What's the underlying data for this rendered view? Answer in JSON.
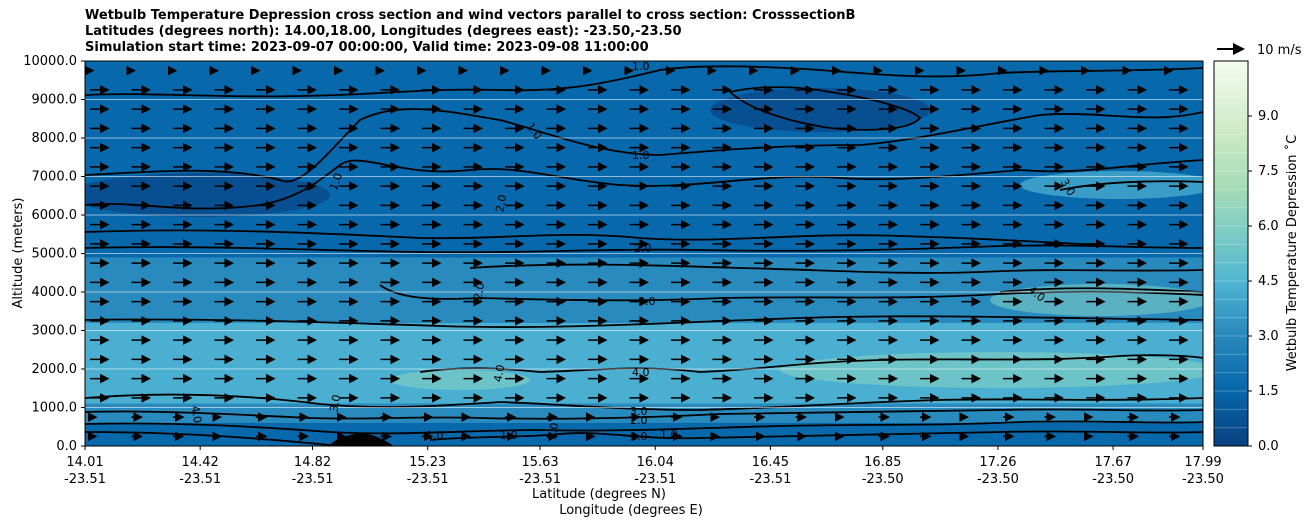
{
  "chart_data": {
    "type": "heatmap",
    "title_lines": [
      "Wetbulb Temperature Depression cross section and wind vectors parallel to cross section: CrosssectionB",
      "Latitudes (degrees north): 14.00,18.00, Longitudes (degrees east): -23.50,-23.50",
      "Simulation start time: 2023-09-07 00:00:00, Valid time: 2023-09-08 11:00:00"
    ],
    "xlabel_lat": "Latitude (degrees N)",
    "xlabel_lon": "Longitude (degrees E)",
    "ylabel": "Altitude (meters)",
    "ylim": [
      0,
      10000
    ],
    "y_ticks": [
      "0.0",
      "1000.0",
      "2000.0",
      "3000.0",
      "4000.0",
      "5000.0",
      "6000.0",
      "7000.0",
      "8000.0",
      "9000.0",
      "10000.0"
    ],
    "x_ticks": [
      {
        "lat": "14.01",
        "lon": "-23.51"
      },
      {
        "lat": "14.42",
        "lon": "-23.51"
      },
      {
        "lat": "14.82",
        "lon": "-23.51"
      },
      {
        "lat": "15.23",
        "lon": "-23.51"
      },
      {
        "lat": "15.63",
        "lon": "-23.51"
      },
      {
        "lat": "16.04",
        "lon": "-23.51"
      },
      {
        "lat": "16.45",
        "lon": "-23.51"
      },
      {
        "lat": "16.85",
        "lon": "-23.50"
      },
      {
        "lat": "17.26",
        "lon": "-23.50"
      },
      {
        "lat": "17.67",
        "lon": "-23.50"
      },
      {
        "lat": "17.99",
        "lon": "-23.50"
      }
    ],
    "colorbar": {
      "label": "Wetbulb Temperature Depression $^\\circ$C",
      "label_display": "Wetbulb Temperature Depression ˚C",
      "range": [
        0,
        10.5
      ],
      "ticks": [
        "0.0",
        "1.5",
        "3.0",
        "4.5",
        "6.0",
        "7.5",
        "9.0"
      ]
    },
    "wind_key_label": "10 m/s",
    "contour_labels": [
      "1.0",
      "1.0",
      "1.0",
      "1.0",
      "2.0",
      "2.0",
      "2.0",
      "3.0",
      "3.0",
      "4.0",
      "4.0",
      "4.0",
      "3.0",
      "2.0",
      "1.0",
      "1.0",
      "1.0",
      "1.0",
      "3.0",
      "4.0",
      "1.0"
    ],
    "level_bands": [
      {
        "altitude": [
          0,
          600
        ],
        "value": 0.8
      },
      {
        "altitude": [
          600,
          1100
        ],
        "value": 2.4
      },
      {
        "altitude": [
          1100,
          3200
        ],
        "value": 3.8
      },
      {
        "altitude": [
          3200,
          4900
        ],
        "value": 3.2
      },
      {
        "altitude": [
          4900,
          5600
        ],
        "value": 2.2
      },
      {
        "altitude": [
          5600,
          7200
        ],
        "value": 1.8
      },
      {
        "altitude": [
          7200,
          10000
        ],
        "value": 1.0
      }
    ]
  }
}
